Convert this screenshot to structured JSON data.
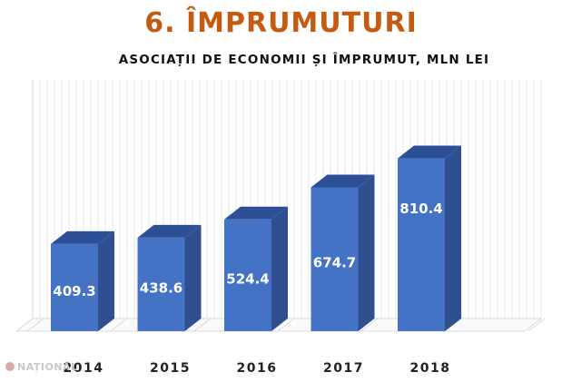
{
  "colors": {
    "title": "#c55a11",
    "bar_front": "#4472c4",
    "bar_side": "#2f4f8f",
    "bar_top": "#2c4f96",
    "grid": "#d9d9d9",
    "label": "#ffffff",
    "tick": "#222222"
  },
  "chart_data": {
    "type": "bar",
    "title": "6. ÎMPRUMUTURI",
    "subtitle": "ASOCIAȚII DE ECONOMII ȘI ÎMPRUMUT, MLN LEI",
    "categories": [
      "2014",
      "2015",
      "2016",
      "2017",
      "2018"
    ],
    "series": [
      {
        "values": [
          409.3,
          438.6,
          524.4,
          674.7,
          810.4
        ]
      }
    ],
    "data_labels": true,
    "ylim": [
      0,
      1000
    ],
    "grid": true,
    "legend": "none",
    "three_d": true
  },
  "watermark": {
    "text": "NAȚIONAL"
  }
}
